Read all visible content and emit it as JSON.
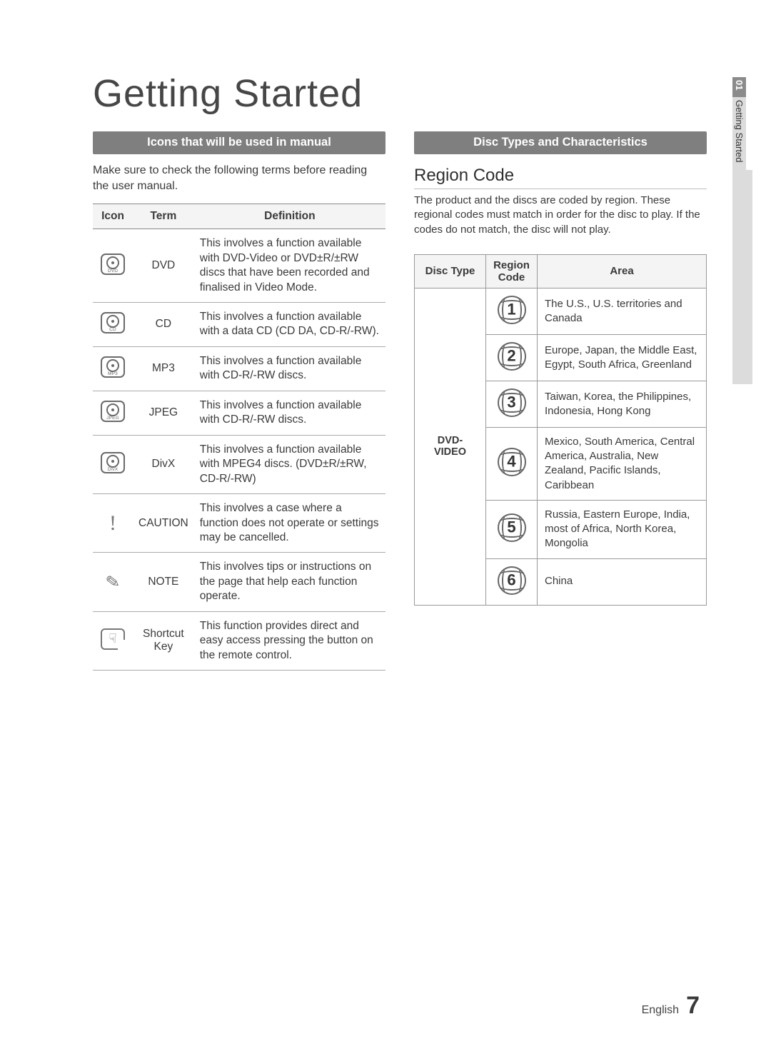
{
  "colors": {
    "band_bg": "#7f7f7f",
    "table_header_bg": "#f4f4f4",
    "border": "#999999",
    "text": "#3a3a3a"
  },
  "title": "Getting Started",
  "sidetab": {
    "chapter_num": "01",
    "chapter_title": "Getting Started"
  },
  "footer": {
    "lang": "English",
    "page": "7"
  },
  "left": {
    "band": "Icons that will be used in manual",
    "intro": "Make sure to check the following terms before reading the user manual.",
    "headers": {
      "icon": "Icon",
      "term": "Term",
      "def": "Definition"
    },
    "rows": [
      {
        "icon_label": "DVD",
        "term": "DVD",
        "def": "This involves a function available with DVD-Video or DVD±R/±RW discs that have been recorded and finalised in Video Mode."
      },
      {
        "icon_label": "CD",
        "term": "CD",
        "def": "This involves a function available with a data CD (CD DA, CD-R/-RW)."
      },
      {
        "icon_label": "MP3",
        "term": "MP3",
        "def": "This involves a function available with CD-R/-RW discs."
      },
      {
        "icon_label": "JPEG",
        "term": "JPEG",
        "def": "This involves a function available with CD-R/-RW discs."
      },
      {
        "icon_label": "DivX",
        "term": "DivX",
        "def": "This involves a function available with MPEG4 discs. (DVD±R/±RW, CD-R/-RW)"
      },
      {
        "icon_label": "!",
        "term": "CAUTION",
        "def": "This involves a case where a function does not operate or settings may be cancelled."
      },
      {
        "icon_label": "note",
        "term": "NOTE",
        "def": "This involves tips or instructions on the page that help each function operate."
      },
      {
        "icon_label": "hand",
        "term": "Shortcut Key",
        "def": "This function provides direct and easy access pressing the button on the remote control."
      }
    ]
  },
  "right": {
    "band": "Disc Types and Characteristics",
    "subhead": "Region Code",
    "desc": "The product and the discs are coded by region. These regional codes must match in order for the disc to play. If the codes do not match, the disc will not play.",
    "headers": {
      "dt": "Disc Type",
      "rc_l1": "Region",
      "rc_l2": "Code",
      "area": "Area"
    },
    "disc_type": "DVD-VIDEO",
    "rows": [
      {
        "code": "1",
        "area": "The U.S., U.S. territories and Canada"
      },
      {
        "code": "2",
        "area": "Europe, Japan, the Middle East, Egypt, South Africa, Greenland"
      },
      {
        "code": "3",
        "area": "Taiwan, Korea, the Philippines, Indonesia, Hong Kong"
      },
      {
        "code": "4",
        "area": "Mexico, South America, Central America, Australia, New Zealand, Pacific Islands, Caribbean"
      },
      {
        "code": "5",
        "area": "Russia, Eastern Europe, India, most of Africa, North Korea, Mongolia"
      },
      {
        "code": "6",
        "area": "China"
      }
    ]
  }
}
